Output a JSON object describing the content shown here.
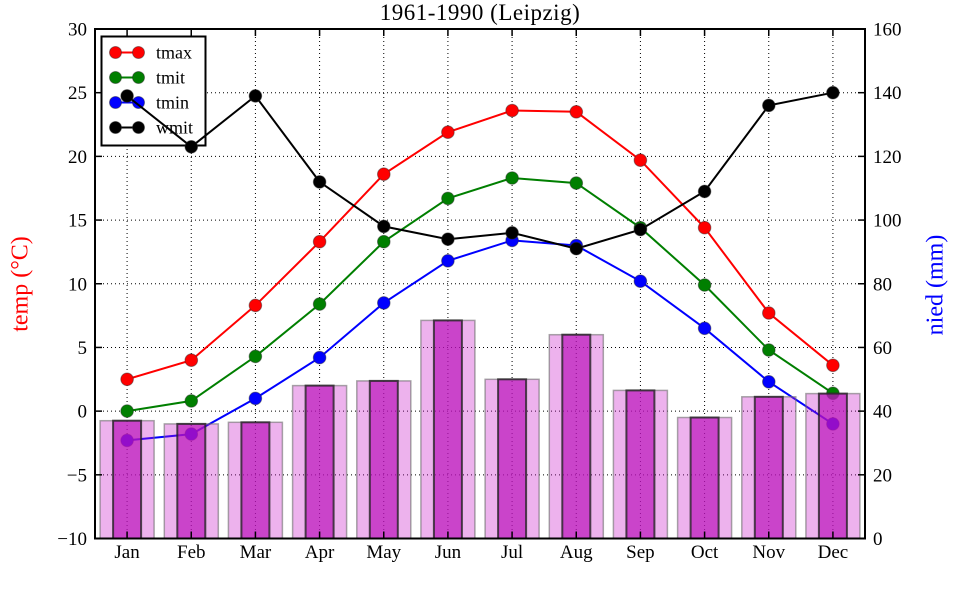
{
  "title": "1961-1990 (Leipzig)",
  "axes": {
    "left": {
      "label": "temp (°C)",
      "color": "#ff0000",
      "range": [
        -10,
        30
      ],
      "tick_values": [
        30,
        25,
        20,
        15,
        10,
        5,
        0,
        -5,
        -10
      ],
      "tick_labels": [
        "30",
        "25",
        "20",
        "15",
        "10",
        "5",
        "0",
        "−5",
        "−10"
      ]
    },
    "right": {
      "label": "nied (mm)",
      "color": "#0000ff",
      "range": [
        0,
        160
      ],
      "tick_values": [
        160,
        140,
        120,
        100,
        80,
        60,
        40,
        20,
        0
      ],
      "tick_labels": [
        "160",
        "140",
        "120",
        "100",
        "80",
        "60",
        "40",
        "20",
        "0"
      ]
    },
    "x": {
      "tick_labels": [
        "Jan",
        "Feb",
        "Mar",
        "Apr",
        "May",
        "Jun",
        "Jul",
        "Aug",
        "Sep",
        "Oct",
        "Nov",
        "Dec"
      ]
    }
  },
  "legend": {
    "position": "upper left",
    "entries": [
      {
        "label": "tmax",
        "color": "#ff0000"
      },
      {
        "label": "tmit",
        "color": "#007f00"
      },
      {
        "label": "tmin",
        "color": "#0000ff"
      },
      {
        "label": "wmit",
        "color": "#000000"
      }
    ]
  },
  "chart_data": {
    "type": "line+bar",
    "title": "1961-1990 (Leipzig)",
    "categories": [
      "Jan",
      "Feb",
      "Mar",
      "Apr",
      "May",
      "Jun",
      "Jul",
      "Aug",
      "Sep",
      "Oct",
      "Nov",
      "Dec"
    ],
    "grid": true,
    "legend_position": "upper left",
    "left_axis": {
      "label": "temp (°C)",
      "range": [
        -10,
        30
      ]
    },
    "right_axis": {
      "label": "nied (mm)",
      "range": [
        0,
        160
      ]
    },
    "series": [
      {
        "name": "tmax",
        "type": "line",
        "axis": "temp",
        "color": "#ff0000",
        "values": [
          2.5,
          4.0,
          8.3,
          13.3,
          18.6,
          21.9,
          23.6,
          23.5,
          19.7,
          14.4,
          7.7,
          3.6
        ]
      },
      {
        "name": "tmit",
        "type": "line",
        "axis": "temp",
        "color": "#007f00",
        "values": [
          0.0,
          0.8,
          4.3,
          8.4,
          13.3,
          16.7,
          18.3,
          17.9,
          14.4,
          9.9,
          4.8,
          1.4
        ]
      },
      {
        "name": "tmin",
        "type": "line",
        "axis": "temp",
        "color": "#0000ff",
        "values": [
          -2.3,
          -1.8,
          1.0,
          4.2,
          8.5,
          11.8,
          13.4,
          13.0,
          10.2,
          6.5,
          2.3,
          -1.0
        ]
      },
      {
        "name": "wmit",
        "type": "line",
        "axis": "nied",
        "color": "#000000",
        "values": [
          139,
          123,
          139,
          112,
          98,
          94,
          96,
          91,
          97,
          109,
          136,
          140
        ]
      },
      {
        "name": "nied",
        "type": "bar",
        "axis": "nied",
        "color_light": "#eebcee",
        "color_dark": "#cc44cc",
        "values": [
          37,
          36,
          36.5,
          48,
          49.5,
          68.5,
          50,
          64,
          46.5,
          38,
          44.5,
          45.5
        ]
      }
    ]
  }
}
